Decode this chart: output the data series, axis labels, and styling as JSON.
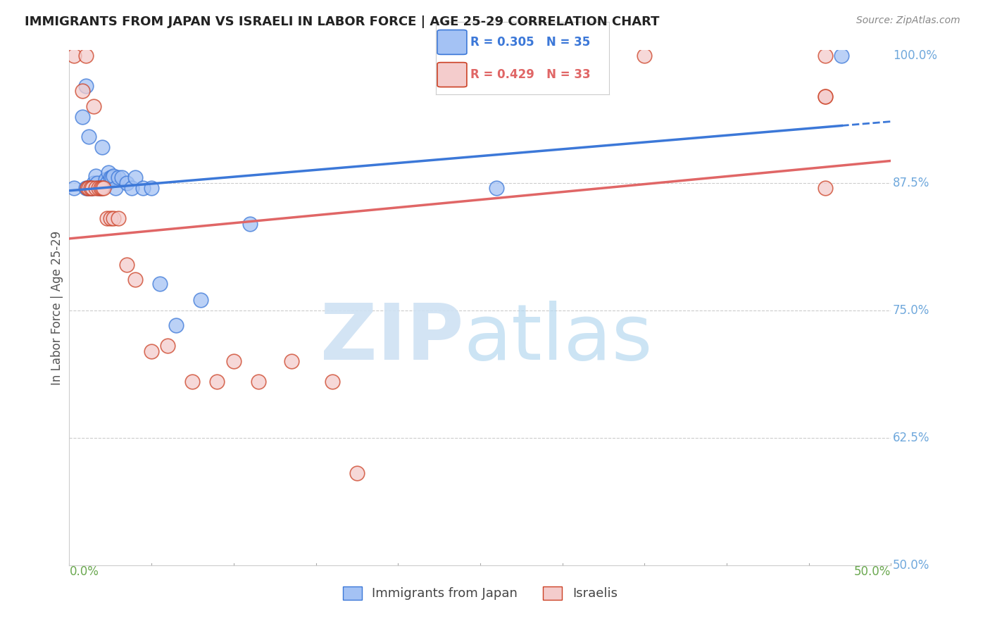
{
  "title": "IMMIGRANTS FROM JAPAN VS ISRAELI IN LABOR FORCE | AGE 25-29 CORRELATION CHART",
  "source": "Source: ZipAtlas.com",
  "xlim": [
    0.0,
    0.5
  ],
  "ylim": [
    0.5,
    1.005
  ],
  "japan_R": 0.305,
  "japan_N": 35,
  "israeli_R": 0.429,
  "israeli_N": 33,
  "japan_color": "#a4c2f4",
  "israeli_color": "#f4cccc",
  "japan_edge_color": "#3c78d8",
  "israeli_edge_color": "#cc4125",
  "japan_line_color": "#3c78d8",
  "israeli_line_color": "#e06666",
  "legend_label_japan": "Immigrants from Japan",
  "legend_label_israeli": "Israelis",
  "background_color": "#ffffff",
  "title_color": "#222222",
  "axis_label_color": "#6aa84f",
  "right_label_color": "#6fa8dc",
  "watermark_zip_color": "#cfe2f3",
  "watermark_atlas_color": "#b7d9f0",
  "japan_x": [
    0.003,
    0.008,
    0.01,
    0.01,
    0.011,
    0.012,
    0.013,
    0.014,
    0.015,
    0.016,
    0.017,
    0.018,
    0.019,
    0.02,
    0.021,
    0.022,
    0.023,
    0.024,
    0.025,
    0.026,
    0.027,
    0.028,
    0.03,
    0.032,
    0.035,
    0.038,
    0.04,
    0.045,
    0.05,
    0.055,
    0.065,
    0.08,
    0.11,
    0.26,
    0.47
  ],
  "japan_y": [
    0.87,
    0.94,
    0.97,
    0.87,
    0.87,
    0.92,
    0.87,
    0.87,
    0.875,
    0.882,
    0.875,
    0.87,
    0.87,
    0.91,
    0.872,
    0.878,
    0.875,
    0.885,
    0.88,
    0.88,
    0.882,
    0.87,
    0.88,
    0.88,
    0.875,
    0.87,
    0.88,
    0.87,
    0.87,
    0.776,
    0.735,
    0.76,
    0.835,
    0.87,
    1.0
  ],
  "israeli_x": [
    0.003,
    0.008,
    0.01,
    0.011,
    0.012,
    0.013,
    0.014,
    0.015,
    0.016,
    0.018,
    0.019,
    0.02,
    0.021,
    0.023,
    0.025,
    0.027,
    0.03,
    0.035,
    0.04,
    0.05,
    0.06,
    0.075,
    0.09,
    0.1,
    0.115,
    0.135,
    0.16,
    0.175,
    0.35,
    0.46,
    0.46,
    0.46,
    0.46
  ],
  "israeli_y": [
    1.0,
    0.965,
    1.0,
    0.87,
    0.87,
    0.87,
    0.87,
    0.95,
    0.87,
    0.87,
    0.87,
    0.87,
    0.87,
    0.84,
    0.84,
    0.84,
    0.84,
    0.795,
    0.78,
    0.71,
    0.715,
    0.68,
    0.68,
    0.7,
    0.68,
    0.7,
    0.68,
    0.59,
    1.0,
    1.0,
    0.96,
    0.96,
    0.87
  ]
}
